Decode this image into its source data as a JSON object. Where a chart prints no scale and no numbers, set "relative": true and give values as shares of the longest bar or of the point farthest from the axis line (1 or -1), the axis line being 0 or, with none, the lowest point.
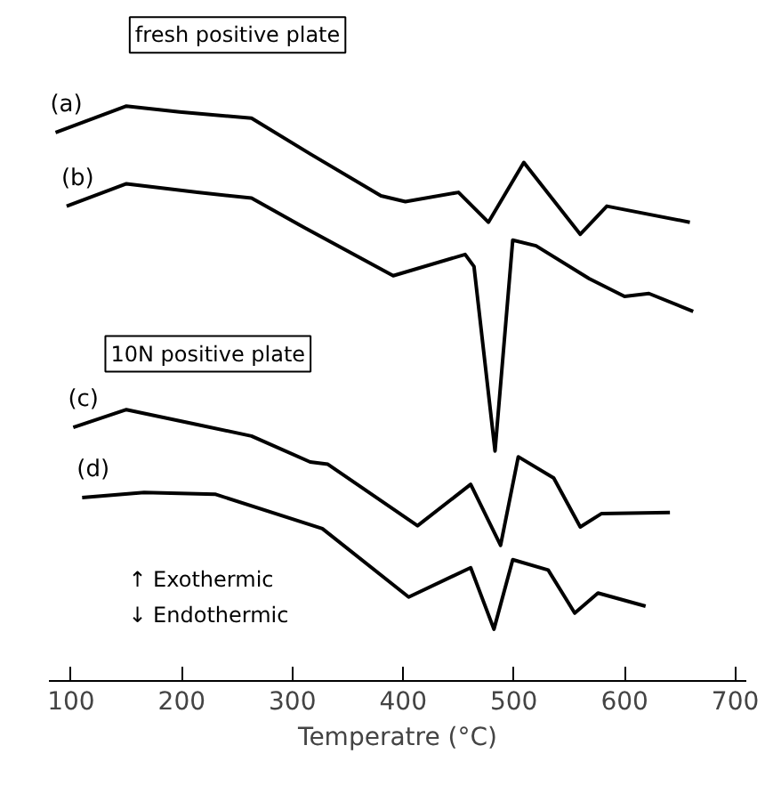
{
  "chart_data": {
    "type": "line",
    "relative": true,
    "xlabel": "Temperatre (°C)",
    "xlim": [
      80,
      710
    ],
    "xticks": [
      100,
      200,
      300,
      400,
      500,
      600,
      700
    ],
    "annotations": [
      "fresh positive plate",
      "10N positive plate",
      "↑ Exothermic",
      "↓ Endothermic"
    ],
    "series": [
      {
        "name": "(a)",
        "color": "#000000",
        "x": [
          86,
          150,
          198,
          263,
          316,
          380,
          402,
          450,
          477,
          509,
          560,
          584,
          659
        ],
        "values": [
          0.954,
          1.0,
          0.99,
          0.979,
          0.917,
          0.844,
          0.834,
          0.85,
          0.798,
          0.902,
          0.777,
          0.826,
          0.798
        ]
      },
      {
        "name": "(b)",
        "color": "#000000",
        "x": [
          96,
          150,
          214,
          263,
          316,
          391,
          456,
          464,
          483,
          499,
          520,
          568,
          600,
          622,
          662
        ],
        "values": [
          0.826,
          0.865,
          0.85,
          0.84,
          0.783,
          0.705,
          0.742,
          0.721,
          0.4,
          0.767,
          0.757,
          0.7,
          0.669,
          0.674,
          0.643
        ]
      },
      {
        "name": "(c)",
        "color": "#000000",
        "x": [
          102,
          150,
          214,
          263,
          316,
          332,
          413,
          461,
          488,
          504,
          536,
          560,
          579,
          641
        ],
        "values": [
          0.441,
          0.472,
          0.446,
          0.426,
          0.381,
          0.377,
          0.27,
          0.342,
          0.236,
          0.39,
          0.353,
          0.268,
          0.291,
          0.293
        ]
      },
      {
        "name": "(d)",
        "color": "#000000",
        "x": [
          110,
          166,
          230,
          327,
          405,
          461,
          482,
          499,
          531,
          555,
          576,
          619
        ],
        "values": [
          0.319,
          0.328,
          0.325,
          0.265,
          0.146,
          0.197,
          0.09,
          0.211,
          0.193,
          0.118,
          0.153,
          0.13
        ]
      }
    ]
  }
}
